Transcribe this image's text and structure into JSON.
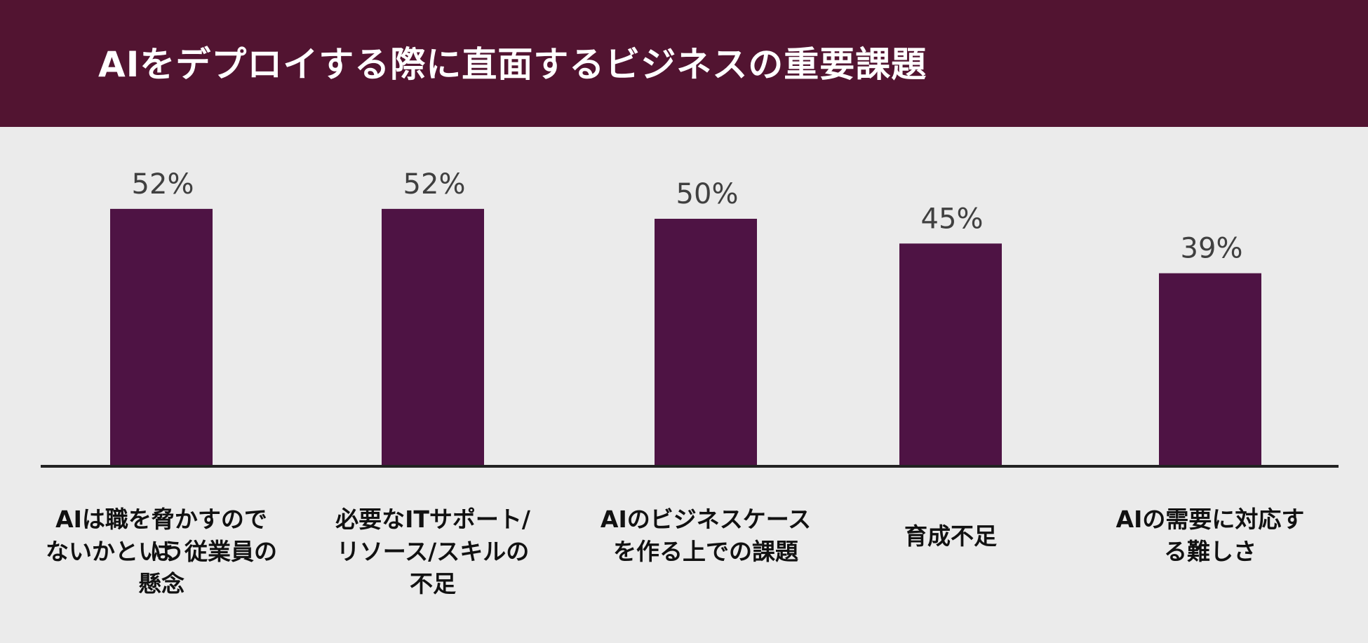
{
  "title": "AIをデプロイする際に直面するビジネスの重要課題",
  "colors": {
    "header_bg": "#521431",
    "bar": "#4e1344",
    "background": "#ebebeb"
  },
  "chart_data": {
    "type": "bar",
    "title": "AIをデプロイする際に直面するビジネスの重要課題",
    "categories": [
      "AIは職を脅かすのではないかという従業員の懸念",
      "必要なITサポート/リソース/スキルの不足",
      "AIのビジネスケースを作る上での課題",
      "育成不足",
      "AIの需要に対応する難しさ"
    ],
    "category_lines": [
      [
        "AIは職を脅かすのでは",
        "ないかという従業員の",
        "懸念"
      ],
      [
        "必要なITサポート/",
        "リソース/スキルの",
        "不足"
      ],
      [
        "AIのビジネスケース",
        "を作る上での課題"
      ],
      [
        "育成不足"
      ],
      [
        "AIの需要に対応す",
        "る難しさ"
      ]
    ],
    "values": [
      52,
      52,
      50,
      45,
      39
    ],
    "value_labels": [
      "52%",
      "52%",
      "50%",
      "45%",
      "39%"
    ],
    "unit": "%",
    "ylim": [
      0,
      100
    ],
    "grid": false,
    "legend": "none"
  }
}
